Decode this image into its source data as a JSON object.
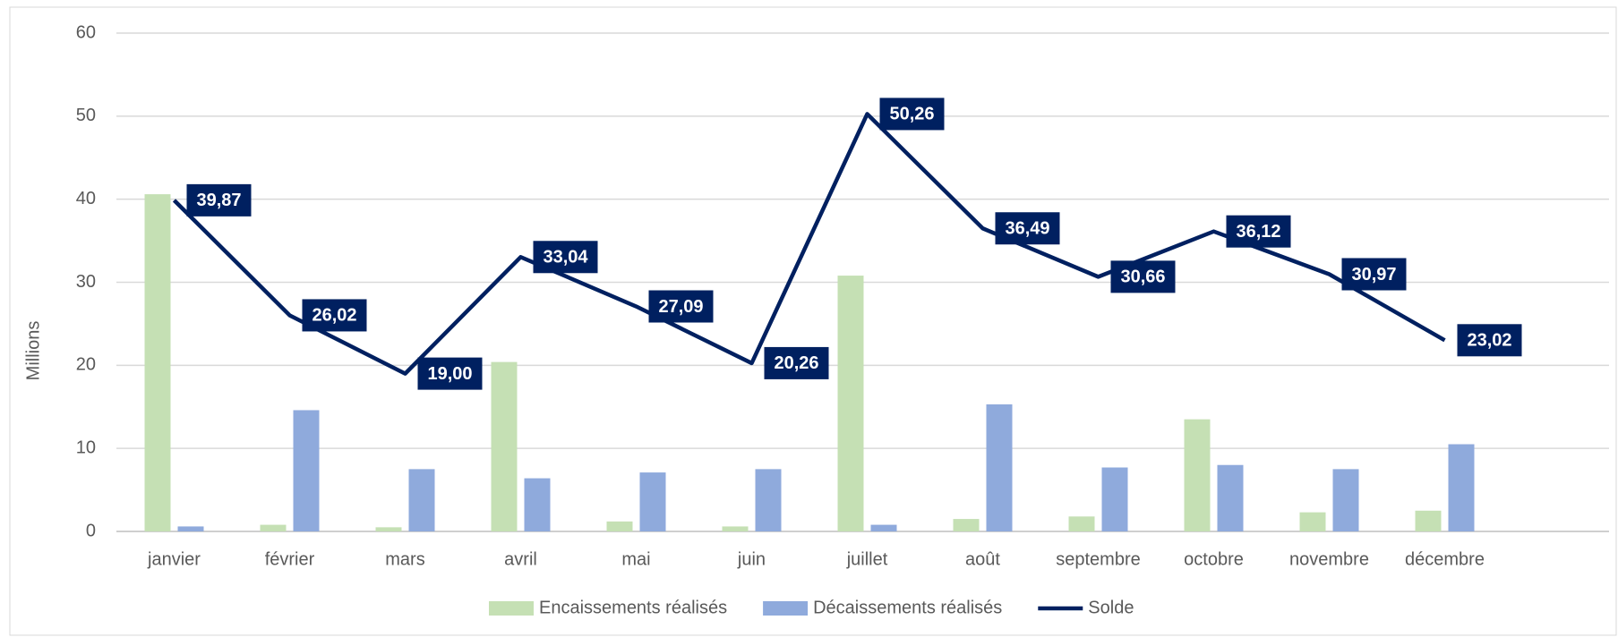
{
  "chart_data": {
    "type": "bar-line",
    "y_axis_label": "Millions",
    "categories": [
      "janvier",
      "février",
      "mars",
      "avril",
      "mai",
      "juin",
      "juillet",
      "août",
      "septembre",
      "octobre",
      "novembre",
      "décembre"
    ],
    "series": [
      {
        "name": "Encaissements réalisés",
        "type": "bar",
        "color": "#c5e0b4",
        "values": [
          40.6,
          0.8,
          0.5,
          20.4,
          1.2,
          0.6,
          30.8,
          1.5,
          1.8,
          13.5,
          2.3,
          2.5
        ]
      },
      {
        "name": "Décaissements réalisés",
        "type": "bar",
        "color": "#8faadc",
        "values": [
          0.6,
          14.6,
          7.5,
          6.4,
          7.1,
          7.5,
          0.8,
          15.3,
          7.7,
          8.0,
          7.5,
          10.5
        ]
      },
      {
        "name": "Solde",
        "type": "line",
        "color": "#002060",
        "values": [
          39.87,
          26.02,
          19.0,
          33.04,
          27.09,
          20.26,
          50.26,
          36.49,
          30.66,
          36.12,
          30.97,
          23.02
        ],
        "value_labels": [
          "39,87",
          "26,02",
          "19,00",
          "33,04",
          "27,09",
          "20,26",
          "50,26",
          "36,49",
          "30,66",
          "36,12",
          "30,97",
          "23,02"
        ]
      }
    ],
    "ylim": [
      0,
      60
    ],
    "yticks": [
      0,
      10,
      20,
      30,
      40,
      50,
      60
    ],
    "grid": true,
    "legend": "bottom"
  }
}
